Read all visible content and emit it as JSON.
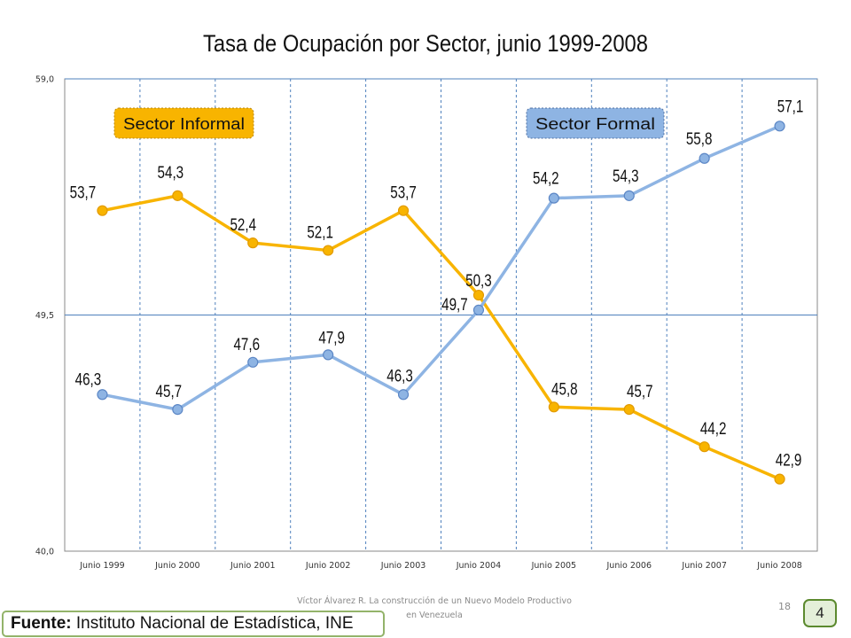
{
  "chart_data": {
    "type": "line",
    "title": "Tasa de Ocupación por Sector, junio 1999-2008",
    "categories": [
      "Junio 1999",
      "Junio 2000",
      "Junio 2001",
      "Junio 2002",
      "Junio 2003",
      "Junio 2004",
      "Junio 2005",
      "Junio 2006",
      "Junio 2007",
      "Junio 2008"
    ],
    "series": [
      {
        "name": "Sector Informal",
        "color": "#f8b400",
        "values": [
          53.7,
          54.3,
          52.4,
          52.1,
          53.7,
          50.3,
          45.8,
          45.7,
          44.2,
          42.9
        ],
        "labels": [
          "53,7",
          "54,3",
          "52,4",
          "52,1",
          "53,7",
          "50,3",
          "45,8",
          "45,7",
          "44,2",
          "42,9"
        ]
      },
      {
        "name": "Sector Formal",
        "color": "#8eb4e3",
        "values": [
          46.3,
          45.7,
          47.6,
          47.9,
          46.3,
          49.7,
          54.2,
          54.3,
          55.8,
          57.1
        ],
        "labels": [
          "46,3",
          "45,7",
          "47,6",
          "47,9",
          "46,3",
          "49,7",
          "54,2",
          "54,3",
          "55,8",
          "57,1"
        ]
      }
    ],
    "ylim": [
      40.0,
      59.0
    ],
    "yticks": [
      40.0,
      49.5,
      59.0
    ],
    "ytick_labels": [
      "40,0",
      "49,5",
      "59,0"
    ],
    "xlabel": "",
    "ylabel": "",
    "grid": true,
    "legend": "callout boxes inside plot (Sector Informal top-left, Sector Formal top-right)"
  },
  "footer": {
    "note": "Víctor Álvarez R. La construcción de un Nuevo Modelo Productivo en Venezuela",
    "page_number": "18",
    "slide_badge": "4",
    "source_label": "Fuente:",
    "source_text": " Instituto Nacional de Estadística, INE"
  }
}
